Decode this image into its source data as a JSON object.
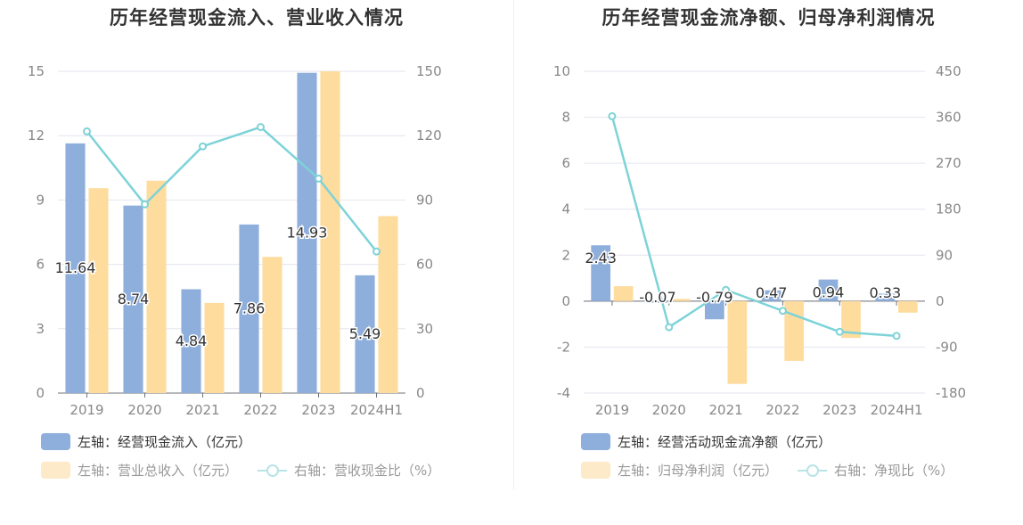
{
  "chart_data": [
    {
      "type": "bar",
      "title": "历年经营现金流入、营业收入情况",
      "categories": [
        "2019",
        "2020",
        "2021",
        "2022",
        "2023",
        "2024H1"
      ],
      "left_axis": {
        "ylim": [
          0,
          15
        ],
        "ticks": [
          0,
          3,
          6,
          9,
          12,
          15
        ]
      },
      "right_axis": {
        "ylim": [
          0,
          150
        ],
        "ticks": [
          0,
          30,
          60,
          90,
          120,
          150
        ]
      },
      "series": [
        {
          "name": "左轴：经营现金流入（亿元）",
          "kind": "bar",
          "axis": "left",
          "color": "#8eaedb",
          "values": [
            11.64,
            8.74,
            4.84,
            7.86,
            14.93,
            5.49
          ],
          "labels": [
            "11.64",
            "8.74",
            "4.84",
            "7.86",
            "14.93",
            "5.49"
          ]
        },
        {
          "name": "左轴：营业总收入（亿元）",
          "kind": "bar",
          "axis": "left",
          "color": "#fedc9e",
          "values": [
            9.55,
            9.9,
            4.2,
            6.35,
            15.0,
            8.25
          ]
        },
        {
          "name": "右轴：营收现金比（%）",
          "kind": "line",
          "axis": "right",
          "color": "#7dd3d8",
          "values": [
            122,
            88,
            115,
            124,
            100,
            66
          ]
        }
      ],
      "grid": true,
      "legend": "bottom-left"
    },
    {
      "type": "bar",
      "title": "历年经营现金流净额、归母净利润情况",
      "categories": [
        "2019",
        "2020",
        "2021",
        "2022",
        "2023",
        "2024H1"
      ],
      "left_axis": {
        "ylim": [
          -4,
          10
        ],
        "ticks": [
          -4,
          -2,
          0,
          2,
          4,
          6,
          8,
          10
        ]
      },
      "right_axis": {
        "ylim": [
          -180,
          450
        ],
        "ticks": [
          -180,
          -90,
          0,
          90,
          180,
          270,
          360,
          450
        ]
      },
      "series": [
        {
          "name": "左轴：经营活动现金流净额（亿元）",
          "kind": "bar",
          "axis": "left",
          "color": "#8eaedb",
          "values": [
            2.43,
            -0.07,
            -0.79,
            0.47,
            0.94,
            0.33
          ],
          "labels": [
            "2.43",
            "-0.07",
            "-0.79",
            "0.47",
            "0.94",
            "0.33"
          ]
        },
        {
          "name": "左轴：归母净利润（亿元）",
          "kind": "bar",
          "axis": "left",
          "color": "#fedc9e",
          "values": [
            0.65,
            0.1,
            -3.6,
            -2.6,
            -1.6,
            -0.5
          ]
        },
        {
          "name": "右轴：净现比（%）",
          "kind": "line",
          "axis": "right",
          "color": "#7dd3d8",
          "values": [
            362,
            -51,
            22,
            -19,
            -60,
            -68
          ]
        }
      ],
      "grid": true,
      "legend": "bottom-left"
    }
  ]
}
